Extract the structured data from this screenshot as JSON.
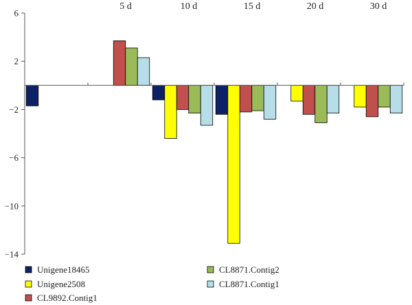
{
  "chart_data": {
    "type": "bar",
    "categories": [
      "",
      "5 d",
      "10 d",
      "15 d",
      "20 d",
      "30 d"
    ],
    "ylim": [
      -14,
      6
    ],
    "yticks": [
      6,
      2,
      -2,
      -6,
      -10,
      -14
    ],
    "ytick_labels": [
      "6",
      "2",
      "−2",
      "−6",
      "−10",
      "−14"
    ],
    "grid": false,
    "legend": "bottom",
    "series": [
      {
        "name": "Unigene18465",
        "color": "#0d2166",
        "values": [
          -1.7,
          null,
          -1.2,
          -2.4,
          null,
          null
        ]
      },
      {
        "name": "Unigene2508",
        "color": "#ffff00",
        "values": [
          null,
          null,
          -4.4,
          -13.1,
          -1.3,
          -1.8
        ]
      },
      {
        "name": "CL9892.Contig1",
        "color": "#c0504d",
        "values": [
          null,
          3.7,
          -2.0,
          -2.2,
          -2.4,
          -2.6
        ]
      },
      {
        "name": "CL8871.Contig2",
        "color": "#9bbb59",
        "values": [
          null,
          3.1,
          -2.3,
          -2.1,
          -3.1,
          -1.8
        ]
      },
      {
        "name": "CL8871.Contig1",
        "color": "#b7dee8",
        "values": [
          null,
          2.3,
          -3.3,
          -2.8,
          -2.3,
          -2.3
        ]
      }
    ]
  }
}
